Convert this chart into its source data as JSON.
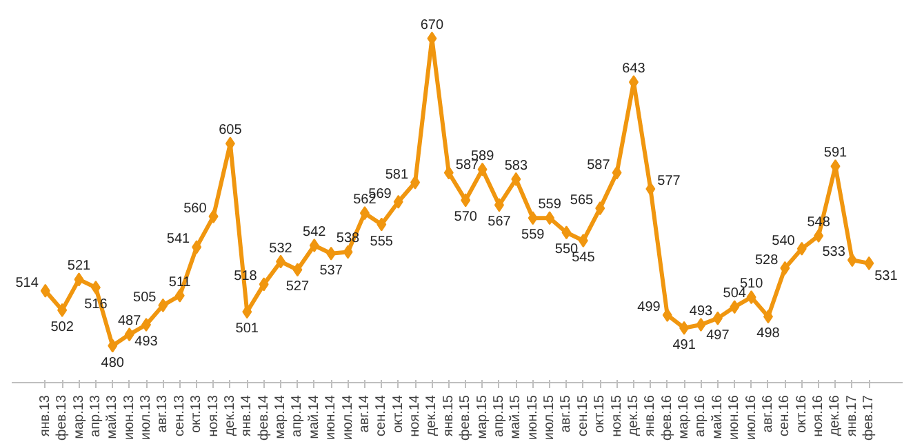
{
  "chart_data": {
    "type": "line",
    "categories": [
      "янв.13",
      "фев.13",
      "мар.13",
      "апр.13",
      "май.13",
      "июн.13",
      "июл.13",
      "авг.13",
      "сен.13",
      "окт.13",
      "ноя.13",
      "дек.13",
      "янв.14",
      "фев.14",
      "мар.14",
      "апр.14",
      "май.14",
      "июн.14",
      "июл.14",
      "авг.14",
      "сен.14",
      "окт.14",
      "ноя.14",
      "дек.14",
      "янв.15",
      "фев.15",
      "мар.15",
      "апр.15",
      "май.15",
      "июн.15",
      "июл.15",
      "авг.15",
      "сен.15",
      "окт.15",
      "ноя.15",
      "дек.15",
      "янв.16",
      "фев.16",
      "мар.16",
      "апр.16",
      "май.16",
      "июн.16",
      "июл.16",
      "авг.16",
      "сен.16",
      "окт.16",
      "ноя.16",
      "дек.16",
      "янв.17",
      "фев.17"
    ],
    "series": [
      {
        "color": "#f0960f",
        "values": [
          514,
          502,
          521,
          516,
          480,
          487,
          493,
          505,
          511,
          541,
          560,
          605,
          501,
          518,
          532,
          527,
          542,
          537,
          538,
          562,
          555,
          569,
          581,
          670,
          587,
          570,
          589,
          567,
          583,
          559,
          559,
          550,
          545,
          565,
          587,
          643,
          577,
          499,
          491,
          493,
          497,
          504,
          510,
          498,
          528,
          540,
          548,
          591,
          533,
          531
        ]
      }
    ],
    "data_labels": true,
    "marker": "diamond",
    "line_style": "solid",
    "grid": false,
    "tick_labels": "x"
  }
}
